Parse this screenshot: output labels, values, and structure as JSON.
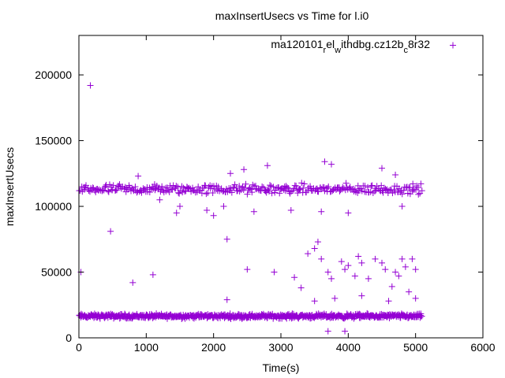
{
  "chart_data": {
    "type": "scatter",
    "title": "maxInsertUsecs vs Time for l.i0",
    "xlabel": "Time(s)",
    "ylabel": "maxInsertUsecs",
    "xlim": [
      0,
      6000
    ],
    "ylim": [
      0,
      230000
    ],
    "x_ticks": [
      0,
      1000,
      2000,
      3000,
      4000,
      5000,
      6000
    ],
    "y_ticks": [
      0,
      50000,
      100000,
      150000,
      200000
    ],
    "x_tick_labels": [
      "0",
      "1000",
      "2000",
      "3000",
      "4000",
      "5000",
      "6000"
    ],
    "y_tick_labels": [
      "0",
      "50000",
      "100000",
      "150000",
      "200000"
    ],
    "grid": false,
    "legend_position": "top-right",
    "legend": {
      "base": "ma120101",
      "sub1": "r",
      "mid1": "el",
      "sub2": "w",
      "mid2": "ithdbg.cz12b",
      "sub3": "c",
      "end": "8r32"
    },
    "series": [
      {
        "name": "ma120101_rel_withdbg.cz12b_c8r32",
        "color": "#9400d3",
        "marker": "+",
        "bands": [
          {
            "x_range": [
              0,
              5100
            ],
            "y_center": 16500,
            "y_spread": 2500,
            "count": 650
          },
          {
            "x_range": [
              0,
              5100
            ],
            "y_center": 113000,
            "y_spread": 5500,
            "count": 340
          }
        ],
        "points": [
          [
            170,
            192000
          ],
          [
            470,
            81000
          ],
          [
            30,
            50000
          ],
          [
            1100,
            48000
          ],
          [
            800,
            42000
          ],
          [
            2200,
            75000
          ],
          [
            2200,
            29000
          ],
          [
            2500,
            52000
          ],
          [
            2900,
            50000
          ],
          [
            3200,
            46000
          ],
          [
            3300,
            38000
          ],
          [
            3400,
            64000
          ],
          [
            3500,
            68000
          ],
          [
            3550,
            73000
          ],
          [
            3600,
            60000
          ],
          [
            3700,
            50000
          ],
          [
            3750,
            45000
          ],
          [
            3900,
            58000
          ],
          [
            3950,
            52000
          ],
          [
            4000,
            55000
          ],
          [
            4100,
            47000
          ],
          [
            4150,
            62000
          ],
          [
            4200,
            57000
          ],
          [
            4300,
            45000
          ],
          [
            4400,
            60000
          ],
          [
            4500,
            57000
          ],
          [
            4550,
            52000
          ],
          [
            4700,
            50000
          ],
          [
            4750,
            47000
          ],
          [
            4800,
            60000
          ],
          [
            4850,
            54000
          ],
          [
            4950,
            60000
          ],
          [
            5000,
            52000
          ],
          [
            4650,
            39000
          ],
          [
            4900,
            35000
          ],
          [
            3500,
            28000
          ],
          [
            3800,
            30000
          ],
          [
            4200,
            32000
          ],
          [
            4600,
            28000
          ],
          [
            5000,
            30000
          ],
          [
            3700,
            5000
          ],
          [
            3950,
            5000
          ],
          [
            1200,
            105000
          ],
          [
            1450,
            95000
          ],
          [
            1500,
            100000
          ],
          [
            1900,
            97000
          ],
          [
            2000,
            93000
          ],
          [
            2150,
            100000
          ],
          [
            2600,
            96000
          ],
          [
            3150,
            97000
          ],
          [
            3600,
            96000
          ],
          [
            4000,
            95000
          ],
          [
            4800,
            100000
          ],
          [
            880,
            123000
          ],
          [
            2250,
            125000
          ],
          [
            2450,
            128000
          ],
          [
            2800,
            131000
          ],
          [
            3650,
            134000
          ],
          [
            3750,
            132000
          ],
          [
            4500,
            129000
          ],
          [
            4700,
            124000
          ]
        ]
      }
    ]
  }
}
